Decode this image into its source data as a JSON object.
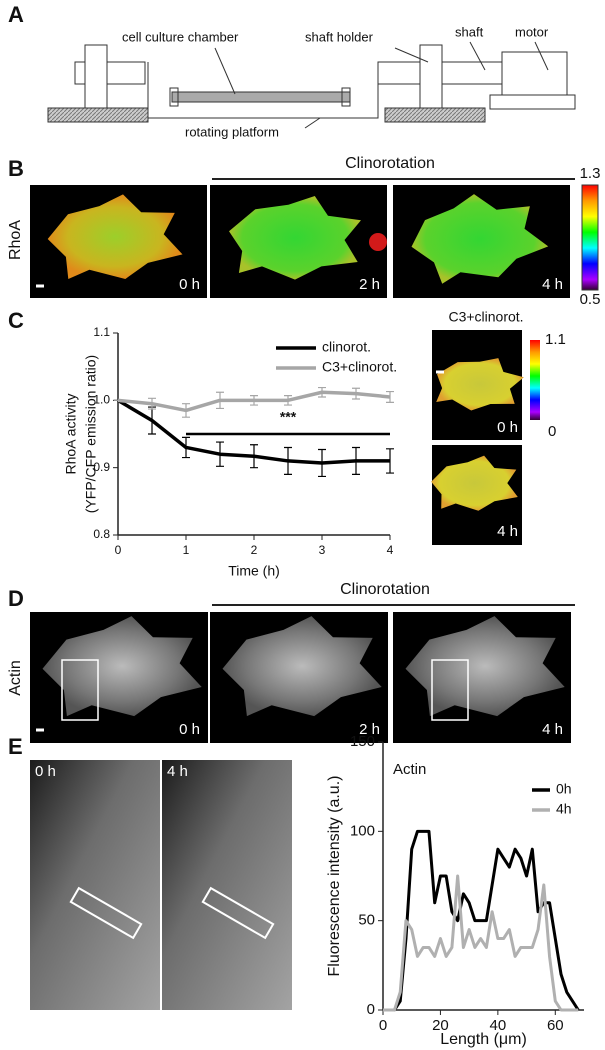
{
  "panel_labels": [
    "A",
    "B",
    "C",
    "D",
    "E"
  ],
  "diagram": {
    "labels": [
      "cell culture chamber",
      "shaft holder",
      "shaft",
      "motor",
      "rotating platform"
    ]
  },
  "panel_b": {
    "header": "Clinorotation",
    "row_label": "RhoA",
    "times": [
      "0 h",
      "2 h",
      "4 h"
    ],
    "colorbar": {
      "max": "1.3",
      "min": "0.5"
    }
  },
  "panel_c_images": {
    "title": "C3+clinorot.",
    "times": [
      "0 h",
      "4 h"
    ],
    "colorbar": {
      "max": "1.1",
      "min": "0"
    }
  },
  "panel_d": {
    "header": "Clinorotation",
    "row_label": "Actin",
    "times": [
      "0 h",
      "2 h",
      "4 h"
    ]
  },
  "panel_e_images": {
    "times": [
      "0 h",
      "4 h"
    ]
  },
  "chart_data": [
    {
      "type": "line",
      "xlabel": "Time (h)",
      "ylabel": [
        "RhoA activity",
        "(YFP/CFP emission ratio)"
      ],
      "x": [
        0,
        0.5,
        1,
        1.5,
        2,
        2.5,
        3,
        3.5,
        4
      ],
      "series": [
        {
          "name": "clinorot.",
          "color": "#000000",
          "values": [
            1.0,
            0.97,
            0.93,
            0.92,
            0.917,
            0.91,
            0.907,
            0.91,
            0.91
          ],
          "errors": [
            0,
            0.02,
            0.015,
            0.018,
            0.017,
            0.02,
            0.02,
            0.02,
            0.018
          ]
        },
        {
          "name": "C3+clinorot.",
          "color": "#a6a6a6",
          "values": [
            1.0,
            0.995,
            0.985,
            1.0,
            1.0,
            1.0,
            1.012,
            1.01,
            1.005
          ],
          "errors": [
            0,
            0.008,
            0.01,
            0.012,
            0.007,
            0.007,
            0.007,
            0.008,
            0.008
          ]
        }
      ],
      "xlim": [
        0,
        4
      ],
      "xticks": [
        0,
        1,
        2,
        3,
        4
      ],
      "ylim": [
        0.8,
        1.1
      ],
      "yticks": [
        0.8,
        0.9,
        {
          "value": 1,
          "label": "1.0"
        },
        1.1
      ],
      "legend": "upper right",
      "annotations": [
        {
          "text": "***",
          "x": [
            1,
            4
          ],
          "y": 0.95
        }
      ]
    },
    {
      "type": "line",
      "xlabel": "Length (μm)",
      "ylabel": [
        "Fluorescence intensity (a.u.)"
      ],
      "x": [
        0,
        2,
        4,
        6,
        8,
        10,
        12,
        14,
        16,
        18,
        20,
        22,
        24,
        26,
        28,
        30,
        32,
        34,
        36,
        38,
        40,
        42,
        44,
        46,
        48,
        50,
        52,
        54,
        56,
        58,
        60,
        62,
        64,
        66,
        68
      ],
      "series": [
        {
          "name": "0h",
          "color": "#000000",
          "values": [
            0,
            0,
            0,
            5,
            40,
            90,
            100,
            100,
            100,
            60,
            75,
            75,
            55,
            50,
            65,
            60,
            50,
            50,
            50,
            70,
            90,
            85,
            80,
            90,
            85,
            75,
            90,
            55,
            60,
            60,
            40,
            20,
            10,
            5,
            0
          ]
        },
        {
          "name": "4h",
          "color": "#b0b0b0",
          "values": [
            0,
            0,
            0,
            10,
            50,
            45,
            30,
            35,
            35,
            30,
            40,
            30,
            35,
            75,
            35,
            45,
            35,
            40,
            35,
            55,
            40,
            40,
            45,
            30,
            35,
            35,
            35,
            45,
            70,
            30,
            5,
            0,
            0,
            0,
            0
          ]
        }
      ],
      "xlim": [
        0,
        70
      ],
      "xticks": [
        0,
        20,
        40,
        60
      ],
      "ylim": [
        0,
        150
      ],
      "yticks": [
        0,
        50,
        100,
        150
      ],
      "legend": "upper right",
      "annotations": [
        {
          "text": "Actin"
        }
      ]
    }
  ]
}
